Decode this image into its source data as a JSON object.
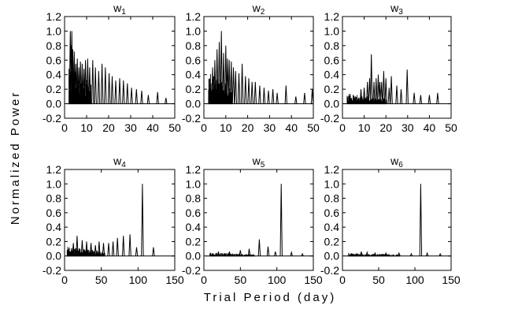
{
  "chart_data": {
    "type": "line",
    "ylabel": "Normalized Power",
    "xlabel": "Trial Period (day)",
    "panels": [
      {
        "title_main": "w",
        "title_sub": "1",
        "xlim": [
          0,
          50
        ],
        "ylim": [
          -0.2,
          1.2
        ],
        "xticks": [
          "0",
          "10",
          "20",
          "30",
          "40",
          "50"
        ],
        "yticks": [
          "-0.2",
          "0.0",
          "0.2",
          "0.4",
          "0.6",
          "0.8",
          "1.0",
          "1.2"
        ],
        "noise": {
          "start": 2,
          "end": 12,
          "amp": 0.55
        },
        "peaks": [
          [
            2.6,
            1.0
          ],
          [
            3.0,
            0.8
          ],
          [
            3.3,
            1.0
          ],
          [
            3.7,
            0.75
          ],
          [
            4.4,
            0.72
          ],
          [
            5.1,
            0.55
          ],
          [
            5.8,
            0.62
          ],
          [
            6.5,
            0.5
          ],
          [
            7.2,
            0.58
          ],
          [
            8.0,
            0.55
          ],
          [
            8.8,
            0.48
          ],
          [
            9.5,
            0.6
          ],
          [
            10.5,
            0.62
          ],
          [
            11.4,
            0.5
          ],
          [
            12.8,
            0.6
          ],
          [
            14.0,
            0.5
          ],
          [
            15.5,
            0.45
          ],
          [
            17.0,
            0.55
          ],
          [
            18.5,
            0.5
          ],
          [
            20.2,
            0.42
          ],
          [
            21.6,
            0.38
          ],
          [
            23.2,
            0.32
          ],
          [
            25.0,
            0.35
          ],
          [
            26.7,
            0.32
          ],
          [
            28.5,
            0.28
          ],
          [
            30.4,
            0.22
          ],
          [
            32.6,
            0.2
          ],
          [
            35.0,
            0.18
          ],
          [
            38.0,
            0.12
          ],
          [
            42.2,
            0.16
          ],
          [
            46.0,
            0.08
          ]
        ]
      },
      {
        "title_main": "w",
        "title_sub": "2",
        "xlim": [
          0,
          50
        ],
        "ylim": [
          -0.2,
          1.2
        ],
        "xticks": [
          "0",
          "10",
          "20",
          "30",
          "40",
          "50"
        ],
        "yticks": [
          "-0.2",
          "0.0",
          "0.2",
          "0.4",
          "0.6",
          "0.8",
          "1.0",
          "1.2"
        ],
        "noise": {
          "start": 2,
          "end": 13,
          "amp": 0.45
        },
        "peaks": [
          [
            4.0,
            0.5
          ],
          [
            5.0,
            0.6
          ],
          [
            6.0,
            0.75
          ],
          [
            7.0,
            0.85
          ],
          [
            8.0,
            1.0
          ],
          [
            9.0,
            0.7
          ],
          [
            10.0,
            0.8
          ],
          [
            10.8,
            0.62
          ],
          [
            11.6,
            0.6
          ],
          [
            12.5,
            0.58
          ],
          [
            13.5,
            0.5
          ],
          [
            14.5,
            0.45
          ],
          [
            16.0,
            0.42
          ],
          [
            17.5,
            0.55
          ],
          [
            19.0,
            0.38
          ],
          [
            20.5,
            0.35
          ],
          [
            22.0,
            0.3
          ],
          [
            23.5,
            0.3
          ],
          [
            25.5,
            0.25
          ],
          [
            27.5,
            0.22
          ],
          [
            29.5,
            0.18
          ],
          [
            31.5,
            0.2
          ],
          [
            33.5,
            0.15
          ],
          [
            37.5,
            0.25
          ],
          [
            42.0,
            0.1
          ],
          [
            46.0,
            0.15
          ],
          [
            49.5,
            0.2
          ]
        ]
      },
      {
        "title_main": "w",
        "title_sub": "3",
        "xlim": [
          0,
          50
        ],
        "ylim": [
          -0.2,
          1.2
        ],
        "xticks": [
          "0",
          "10",
          "20",
          "30",
          "40",
          "50"
        ],
        "yticks": [
          "-0.2",
          "0.0",
          "0.2",
          "0.4",
          "0.6",
          "0.8",
          "1.0",
          "1.2"
        ],
        "noise": {
          "start": 2,
          "end": 20,
          "amp": 0.14
        },
        "peaks": [
          [
            8.5,
            0.2
          ],
          [
            10.0,
            0.22
          ],
          [
            11.5,
            0.3
          ],
          [
            12.5,
            0.35
          ],
          [
            13.3,
            0.68
          ],
          [
            14.5,
            0.3
          ],
          [
            15.5,
            0.35
          ],
          [
            16.5,
            0.4
          ],
          [
            17.2,
            0.3
          ],
          [
            18.0,
            0.3
          ],
          [
            19.0,
            0.45
          ],
          [
            20.0,
            0.35
          ],
          [
            21.5,
            0.22
          ],
          [
            22.5,
            0.38
          ],
          [
            25.0,
            0.25
          ],
          [
            27.0,
            0.2
          ],
          [
            29.8,
            0.47
          ],
          [
            33.0,
            0.15
          ],
          [
            36.0,
            0.12
          ],
          [
            40.0,
            0.12
          ],
          [
            43.8,
            0.15
          ]
        ]
      },
      {
        "title_main": "w",
        "title_sub": "4",
        "xlim": [
          0,
          150
        ],
        "ylim": [
          -0.2,
          1.2
        ],
        "xticks": [
          "0",
          "50",
          "100",
          "150"
        ],
        "yticks": [
          "-0.2",
          "0.0",
          "0.2",
          "0.4",
          "0.6",
          "0.8",
          "1.0",
          "1.2"
        ],
        "noise": {
          "start": 3,
          "end": 55,
          "amp": 0.13
        },
        "peaks": [
          [
            12,
            0.18
          ],
          [
            17,
            0.28
          ],
          [
            24,
            0.22
          ],
          [
            30,
            0.2
          ],
          [
            36,
            0.18
          ],
          [
            42,
            0.15
          ],
          [
            47,
            0.2
          ],
          [
            53,
            0.18
          ],
          [
            60,
            0.18
          ],
          [
            66,
            0.2
          ],
          [
            72,
            0.25
          ],
          [
            80,
            0.28
          ],
          [
            89,
            0.3
          ],
          [
            98,
            0.12
          ],
          [
            106,
            1.0
          ],
          [
            121,
            0.12
          ]
        ]
      },
      {
        "title_main": "w",
        "title_sub": "5",
        "xlim": [
          0,
          150
        ],
        "ylim": [
          -0.2,
          1.2
        ],
        "xticks": [
          "0",
          "50",
          "100",
          "150"
        ],
        "yticks": [
          "-0.2",
          "0.0",
          "0.2",
          "0.4",
          "0.6",
          "0.8",
          "1.0",
          "1.2"
        ],
        "noise": {
          "start": 8,
          "end": 70,
          "amp": 0.05
        },
        "peaks": [
          [
            20,
            0.06
          ],
          [
            35,
            0.06
          ],
          [
            50,
            0.08
          ],
          [
            62,
            0.1
          ],
          [
            76,
            0.23
          ],
          [
            88,
            0.13
          ],
          [
            98,
            0.06
          ],
          [
            106,
            1.0
          ],
          [
            120,
            0.05
          ],
          [
            135,
            0.03
          ]
        ]
      },
      {
        "title_main": "w",
        "title_sub": "6",
        "xlim": [
          0,
          150
        ],
        "ylim": [
          -0.2,
          1.2
        ],
        "xticks": [
          "0",
          "50",
          "100",
          "150"
        ],
        "yticks": [
          "-0.2",
          "0.0",
          "0.2",
          "0.4",
          "0.6",
          "0.8",
          "1.0",
          "1.2"
        ],
        "noise": {
          "start": 8,
          "end": 80,
          "amp": 0.04
        },
        "peaks": [
          [
            26,
            0.06
          ],
          [
            34,
            0.05
          ],
          [
            45,
            0.04
          ],
          [
            60,
            0.04
          ],
          [
            78,
            0.04
          ],
          [
            95,
            0.03
          ],
          [
            108,
            1.0
          ],
          [
            117,
            0.04
          ],
          [
            135,
            0.03
          ]
        ]
      }
    ]
  }
}
